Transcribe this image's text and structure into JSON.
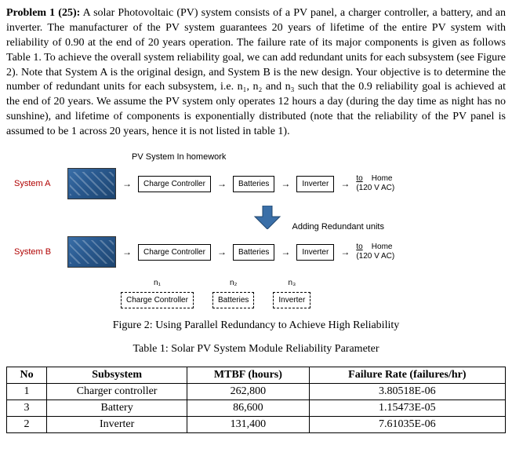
{
  "problem": {
    "title": "Problem 1 (25):",
    "body": "A solar Photovoltaic (PV) system consists of a PV panel, a charger controller, a battery, and an inverter. The manufacturer of the PV system guarantees 20 years of lifetime of the entire PV system with reliability of 0.90 at the end of 20 years operation. The failure rate of its major components is given as follows Table 1. To achieve the overall system reliability goal, we can add redundant units for each subsystem (see Figure 2). Note that System A is the original design, and System B is the new design. Your objective is to determine the number of redundant units for each subsystem, i.e. n₁, n₂ and n₃ such that the 0.9 reliability goal is achieved at the end of 20 years. We assume the PV system only operates 12 hours a day (during the day time as night has no sunshine), and lifetime of components is exponentially distributed (note that the reliability of the PV panel is assumed to be 1 across 20 years, hence it is not listed in table 1)."
  },
  "diagram": {
    "small_title": "PV System In homework",
    "systemA_label": "System A",
    "systemB_label": "System B",
    "components": {
      "charge": "Charge Controller",
      "batt": "Batteries",
      "inv": "Inverter"
    },
    "to_label": "to",
    "home_label": "Home",
    "home_sub": "(120 V AC)",
    "adding_label": "Adding Redundant units",
    "n1": "n₁",
    "n2": "n₂",
    "n3": "n₃",
    "arrow_color": "#3a6fa8"
  },
  "figcaption": "Figure 2:  Using Parallel Redundancy to Achieve High Reliability",
  "tablecaption": "Table 1: Solar PV System Module Reliability Parameter",
  "table": {
    "headers": [
      "No",
      "Subsystem",
      "MTBF (hours)",
      "Failure Rate (failures/hr)"
    ],
    "rows": [
      [
        "1",
        "Charger controller",
        "262,800",
        "3.80518E-06"
      ],
      [
        "3",
        "Battery",
        "86,600",
        "1.15473E-05"
      ],
      [
        "2",
        "Inverter",
        "131,400",
        "7.61035E-06"
      ]
    ]
  }
}
